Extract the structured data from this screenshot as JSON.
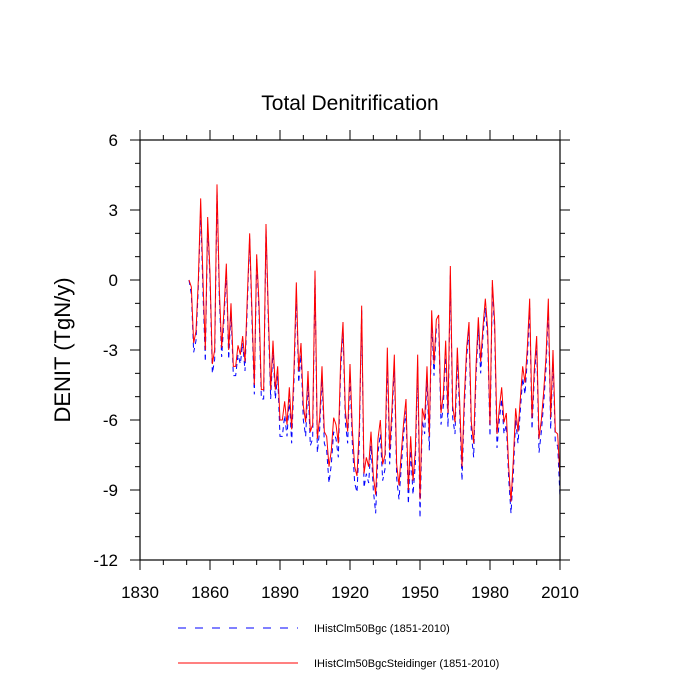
{
  "chart_data": {
    "type": "line",
    "title": "Total Denitrification",
    "xlabel": "",
    "ylabel": "DENIT  (TgN/y)",
    "xlim": [
      1830,
      2010
    ],
    "ylim": [
      -12,
      6
    ],
    "x_ticks": [
      1830,
      1860,
      1890,
      1920,
      1950,
      1980,
      2010
    ],
    "y_ticks": [
      -12,
      -9,
      -6,
      -3,
      0,
      3,
      6
    ],
    "grid": false,
    "legend_position": "bottom",
    "x": [
      1851,
      1852,
      1853,
      1854,
      1855,
      1856,
      1857,
      1858,
      1859,
      1860,
      1861,
      1862,
      1863,
      1864,
      1865,
      1866,
      1867,
      1868,
      1869,
      1870,
      1871,
      1872,
      1873,
      1874,
      1875,
      1876,
      1877,
      1878,
      1879,
      1880,
      1881,
      1882,
      1883,
      1884,
      1885,
      1886,
      1887,
      1888,
      1889,
      1890,
      1891,
      1892,
      1893,
      1894,
      1895,
      1896,
      1897,
      1898,
      1899,
      1900,
      1901,
      1902,
      1903,
      1904,
      1905,
      1906,
      1907,
      1908,
      1909,
      1910,
      1911,
      1912,
      1913,
      1914,
      1915,
      1916,
      1917,
      1918,
      1919,
      1920,
      1921,
      1922,
      1923,
      1924,
      1925,
      1926,
      1927,
      1928,
      1929,
      1930,
      1931,
      1932,
      1933,
      1934,
      1935,
      1936,
      1937,
      1938,
      1939,
      1940,
      1941,
      1942,
      1943,
      1944,
      1945,
      1946,
      1947,
      1948,
      1949,
      1950,
      1951,
      1952,
      1953,
      1954,
      1955,
      1956,
      1957,
      1958,
      1959,
      1960,
      1961,
      1962,
      1963,
      1964,
      1965,
      1966,
      1967,
      1968,
      1969,
      1970,
      1971,
      1972,
      1973,
      1974,
      1975,
      1976,
      1977,
      1978,
      1979,
      1980,
      1981,
      1982,
      1983,
      1984,
      1985,
      1986,
      1987,
      1988,
      1989,
      1990,
      1991,
      1992,
      1993,
      1994,
      1995,
      1996,
      1997,
      1998,
      1999,
      2000,
      2001,
      2002,
      2003,
      2004,
      2005,
      2006,
      2007,
      2008,
      2009,
      2010
    ],
    "series": [
      {
        "name": "IHistClm50Bgc (1851-2010)",
        "color": "#0000ff",
        "dash": "dashed",
        "values": [
          0.0,
          -0.6,
          -3.1,
          -2.6,
          -0.3,
          3.0,
          -0.6,
          -3.5,
          2.4,
          0.0,
          -4.0,
          -3.4,
          3.8,
          -0.8,
          -3.3,
          -1.7,
          0.4,
          -3.4,
          -1.4,
          -4.1,
          -4.1,
          -3.2,
          -3.6,
          -2.7,
          -3.9,
          -1.1,
          1.8,
          -1.8,
          -4.9,
          0.9,
          -1.4,
          -5.1,
          -5.1,
          2.2,
          -1.8,
          -5.1,
          -3.0,
          -5.1,
          -4.1,
          -6.7,
          -6.7,
          -5.8,
          -6.7,
          -5.1,
          -7.0,
          -4.3,
          -0.6,
          -4.4,
          -3.2,
          -6.0,
          -6.7,
          -4.4,
          -7.1,
          -6.8,
          0.2,
          -7.4,
          -6.4,
          -4.2,
          -7.0,
          -7.3,
          -8.7,
          -7.9,
          -6.5,
          -6.8,
          -7.6,
          -3.9,
          -2.1,
          -6.1,
          -7.0,
          -4.1,
          -7.0,
          -8.7,
          -9.1,
          -6.9,
          -1.3,
          -8.9,
          -8.3,
          -8.7,
          -7.1,
          -9.0,
          -10.0,
          -7.4,
          -6.6,
          -8.6,
          -8.1,
          -3.4,
          -7.9,
          -6.0,
          -3.6,
          -8.5,
          -9.4,
          -8.0,
          -6.6,
          -5.6,
          -9.6,
          -7.3,
          -9.2,
          -7.9,
          -3.7,
          -10.2,
          -6.0,
          -6.6,
          -4.2,
          -7.3,
          -1.7,
          -4.1,
          -2.1,
          -1.9,
          -6.2,
          -5.4,
          -3.1,
          -6.3,
          0.2,
          -5.9,
          -6.6,
          -3.4,
          -5.7,
          -8.6,
          -5.5,
          -3.3,
          -2.2,
          -6.6,
          -7.6,
          -4.2,
          -2.0,
          -4.0,
          -2.4,
          -1.2,
          -2.5,
          -6.7,
          -0.3,
          -2.2,
          -7.2,
          -6.0,
          -5.1,
          -6.6,
          -6.2,
          -8.5,
          -10.0,
          -8.3,
          -6.0,
          -7.0,
          -5.6,
          -4.2,
          -4.9,
          -3.4,
          -1.2,
          -6.4,
          -4.2,
          -2.8,
          -7.4,
          -6.5,
          -5.3,
          -3.8,
          -1.2,
          -6.4,
          -3.4,
          -7.0,
          -7.1,
          -9.3
        ]
      },
      {
        "name": "IHistClm50BgcSteidinger (1851-2010)",
        "color": "#ff0000",
        "dash": "solid",
        "values": [
          0.0,
          -0.3,
          -2.7,
          -2.2,
          0.0,
          3.5,
          0.0,
          -3.0,
          2.7,
          0.3,
          -3.6,
          -3.0,
          4.1,
          -0.4,
          -2.9,
          -1.3,
          0.7,
          -3.0,
          -1.0,
          -3.7,
          -3.7,
          -2.8,
          -3.2,
          -2.4,
          -3.5,
          -0.7,
          2.0,
          -1.4,
          -4.5,
          1.1,
          -1.0,
          -4.7,
          -4.7,
          2.4,
          -1.4,
          -4.7,
          -2.6,
          -4.7,
          -3.7,
          -6.0,
          -6.0,
          -5.2,
          -6.2,
          -4.6,
          -6.4,
          -3.8,
          -0.1,
          -3.9,
          -2.7,
          -5.4,
          -6.1,
          -3.9,
          -6.5,
          -6.2,
          0.4,
          -6.8,
          -5.9,
          -3.7,
          -6.5,
          -6.7,
          -8.0,
          -7.3,
          -5.9,
          -6.2,
          -7.0,
          -3.4,
          -1.8,
          -5.6,
          -6.5,
          -3.6,
          -6.4,
          -8.0,
          -8.4,
          -6.3,
          -1.1,
          -8.3,
          -7.6,
          -8.0,
          -6.5,
          -8.4,
          -9.2,
          -6.8,
          -6.0,
          -7.9,
          -7.5,
          -2.9,
          -7.3,
          -5.5,
          -3.2,
          -7.9,
          -8.8,
          -7.4,
          -6.1,
          -5.1,
          -9.0,
          -6.7,
          -8.6,
          -7.3,
          -3.2,
          -9.4,
          -5.5,
          -6.0,
          -3.7,
          -6.7,
          -1.3,
          -3.6,
          -1.7,
          -1.5,
          -5.7,
          -4.9,
          -2.6,
          -5.7,
          0.6,
          -5.4,
          -6.1,
          -2.9,
          -5.2,
          -8.0,
          -5.0,
          -2.9,
          -1.8,
          -6.1,
          -7.0,
          -3.7,
          -1.6,
          -3.5,
          -2.0,
          -0.8,
          -2.1,
          -6.2,
          0.0,
          -1.8,
          -6.6,
          -5.5,
          -4.6,
          -6.1,
          -5.7,
          -8.0,
          -9.5,
          -7.7,
          -5.5,
          -6.5,
          -5.1,
          -3.7,
          -4.4,
          -2.9,
          -0.8,
          -5.9,
          -3.8,
          -2.4,
          -6.8,
          -6.0,
          -4.8,
          -3.3,
          -0.8,
          -5.9,
          -3.0,
          -6.5,
          -6.6,
          -8.5
        ]
      }
    ]
  }
}
